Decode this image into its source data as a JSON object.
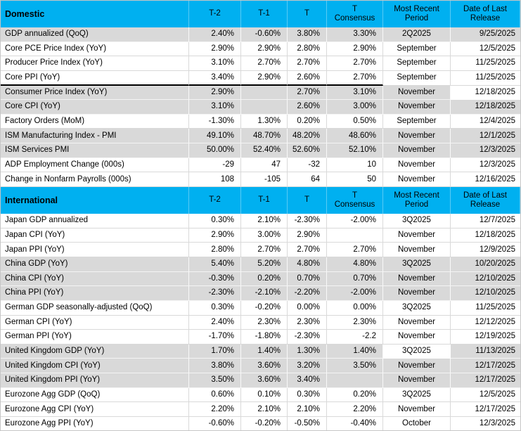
{
  "colors": {
    "header_bg": "#00B0F0",
    "row_gray": "#D9D9D9",
    "row_white": "#FFFFFF",
    "text": "#000000"
  },
  "columns": [
    "T-2",
    "T-1",
    "T",
    "T Consensus",
    "Most Recent Period",
    "Date of Last Release"
  ],
  "sections": [
    {
      "title": "Domestic",
      "rows": [
        {
          "label": "GDP annualized (QoQ)",
          "shade": "gray",
          "values": [
            "2.40%",
            "-0.60%",
            "3.80%",
            "3.30%",
            "2Q2025",
            "9/25/2025"
          ]
        },
        {
          "label": "Core PCE Price Index (YoY)",
          "shade": "white",
          "values": [
            "2.90%",
            "2.90%",
            "2.80%",
            "2.90%",
            "September",
            "12/5/2025"
          ]
        },
        {
          "label": "Producer Price Index (YoY)",
          "shade": "white",
          "values": [
            "3.10%",
            "2.70%",
            "2.70%",
            "2.70%",
            "September",
            "11/25/2025"
          ]
        },
        {
          "label": "Core PPI (YoY)",
          "shade": "white",
          "black_bottom_cols": [
            0,
            1,
            2,
            3,
            4
          ],
          "values": [
            "3.40%",
            "2.90%",
            "2.60%",
            "2.70%",
            "September",
            "11/25/2025"
          ]
        },
        {
          "label": "Consumer Price Index (YoY)",
          "shade": "gray",
          "white_cells": [
            6
          ],
          "values": [
            "2.90%",
            "",
            "2.70%",
            "3.10%",
            "November",
            "12/18/2025"
          ]
        },
        {
          "label": "Core CPI (YoY)",
          "shade": "gray",
          "values": [
            "3.10%",
            "",
            "2.60%",
            "3.00%",
            "November",
            "12/18/2025"
          ]
        },
        {
          "label": "Factory Orders (MoM)",
          "shade": "white",
          "values": [
            "-1.30%",
            "1.30%",
            "0.20%",
            "0.50%",
            "September",
            "12/4/2025"
          ]
        },
        {
          "label": "ISM Manufacturing Index - PMI",
          "shade": "gray",
          "values": [
            "49.10%",
            "48.70%",
            "48.20%",
            "48.60%",
            "November",
            "12/1/2025"
          ]
        },
        {
          "label": "ISM Services PMI",
          "shade": "gray",
          "values": [
            "50.00%",
            "52.40%",
            "52.60%",
            "52.10%",
            "November",
            "12/3/2025"
          ]
        },
        {
          "label": "ADP Employment Change (000s)",
          "shade": "white",
          "values": [
            "-29",
            "47",
            "-32",
            "10",
            "November",
            "12/3/2025"
          ]
        },
        {
          "label": "Change in Nonfarm Payrolls (000s)",
          "shade": "white",
          "values": [
            "108",
            "-105",
            "64",
            "50",
            "November",
            "12/16/2025"
          ]
        }
      ]
    },
    {
      "title": "International",
      "rows": [
        {
          "label": "Japan GDP annualized",
          "shade": "white",
          "values": [
            "0.30%",
            "2.10%",
            "-2.30%",
            "-2.00%",
            "3Q2025",
            "12/7/2025"
          ]
        },
        {
          "label": "Japan CPI (YoY)",
          "shade": "white",
          "values": [
            "2.90%",
            "3.00%",
            "2.90%",
            "",
            "November",
            "12/18/2025"
          ]
        },
        {
          "label": "Japan PPI (YoY)",
          "shade": "white",
          "values": [
            "2.80%",
            "2.70%",
            "2.70%",
            "2.70%",
            "November",
            "12/9/2025"
          ]
        },
        {
          "label": "China GDP (YoY)",
          "shade": "gray",
          "values": [
            "5.40%",
            "5.20%",
            "4.80%",
            "4.80%",
            "3Q2025",
            "10/20/2025"
          ]
        },
        {
          "label": "China CPI (YoY)",
          "shade": "gray",
          "values": [
            "-0.30%",
            "0.20%",
            "0.70%",
            "0.70%",
            "November",
            "12/10/2025"
          ]
        },
        {
          "label": "China PPI (YoY)",
          "shade": "gray",
          "values": [
            "-2.30%",
            "-2.10%",
            "-2.20%",
            "-2.00%",
            "November",
            "12/10/2025"
          ]
        },
        {
          "label": "German GDP seasonally-adjusted (QoQ)",
          "shade": "white",
          "values": [
            "0.30%",
            "-0.20%",
            "0.00%",
            "0.00%",
            "3Q2025",
            "11/25/2025"
          ]
        },
        {
          "label": "German CPI (YoY)",
          "shade": "white",
          "values": [
            "2.40%",
            "2.30%",
            "2.30%",
            "2.30%",
            "November",
            "12/12/2025"
          ]
        },
        {
          "label": "German PPI (YoY)",
          "shade": "white",
          "values": [
            "-1.70%",
            "-1.80%",
            "-2.30%",
            "-2.2",
            "November",
            "12/19/2025"
          ]
        },
        {
          "label": "United Kingdom GDP (YoY)",
          "shade": "gray",
          "white_cells": [
            5
          ],
          "values": [
            "1.70%",
            "1.40%",
            "1.30%",
            "1.40%",
            "3Q2025",
            "11/13/2025"
          ]
        },
        {
          "label": "United Kingdom CPI (YoY)",
          "shade": "gray",
          "values": [
            "3.80%",
            "3.60%",
            "3.20%",
            "3.50%",
            "November",
            "12/17/2025"
          ]
        },
        {
          "label": "United Kingdom PPI (YoY)",
          "shade": "gray",
          "values": [
            "3.50%",
            "3.60%",
            "3.40%",
            "",
            "November",
            "12/17/2025"
          ]
        },
        {
          "label": "Eurozone Agg GDP (QoQ)",
          "shade": "white",
          "values": [
            "0.60%",
            "0.10%",
            "0.30%",
            "0.20%",
            "3Q2025",
            "12/5/2025"
          ]
        },
        {
          "label": "Eurozone Agg CPI (YoY)",
          "shade": "white",
          "values": [
            "2.20%",
            "2.10%",
            "2.10%",
            "2.20%",
            "November",
            "12/17/2025"
          ]
        },
        {
          "label": "Eurozone Agg PPI (YoY)",
          "shade": "white",
          "black_bottom_cols": [
            0
          ],
          "values": [
            "-0.60%",
            "-0.20%",
            "-0.50%",
            "-0.40%",
            "October",
            "12/3/2025"
          ]
        }
      ]
    }
  ]
}
